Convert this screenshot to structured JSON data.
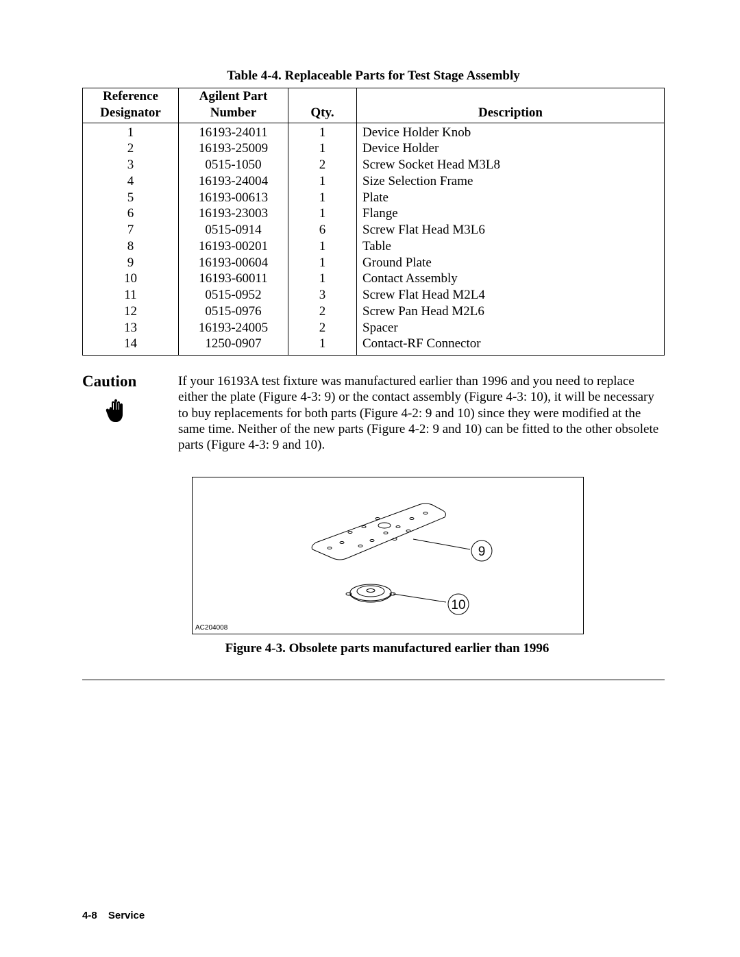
{
  "table": {
    "title": "Table 4-4. Replaceable Parts for Test Stage Assembly",
    "headers": {
      "ref1": "Reference",
      "ref2": "Designator",
      "part1": "Agilent Part",
      "part2": "Number",
      "qty": "Qty.",
      "desc": "Description"
    },
    "rows": [
      {
        "ref": "1",
        "part": "16193-24011",
        "qty": "1",
        "desc": "Device Holder Knob"
      },
      {
        "ref": "2",
        "part": "16193-25009",
        "qty": "1",
        "desc": "Device Holder"
      },
      {
        "ref": "3",
        "part": "0515-1050",
        "qty": "2",
        "desc": "Screw Socket Head M3L8"
      },
      {
        "ref": "4",
        "part": "16193-24004",
        "qty": "1",
        "desc": "Size Selection Frame"
      },
      {
        "ref": "5",
        "part": "16193-00613",
        "qty": "1",
        "desc": "Plate"
      },
      {
        "ref": "6",
        "part": "16193-23003",
        "qty": "1",
        "desc": "Flange"
      },
      {
        "ref": "7",
        "part": "0515-0914",
        "qty": "6",
        "desc": "Screw Flat Head M3L6"
      },
      {
        "ref": "8",
        "part": "16193-00201",
        "qty": "1",
        "desc": "Table"
      },
      {
        "ref": "9",
        "part": "16193-00604",
        "qty": "1",
        "desc": "Ground Plate"
      },
      {
        "ref": "10",
        "part": "16193-60011",
        "qty": "1",
        "desc": "Contact Assembly"
      },
      {
        "ref": "11",
        "part": "0515-0952",
        "qty": "3",
        "desc": "Screw Flat Head M2L4"
      },
      {
        "ref": "12",
        "part": "0515-0976",
        "qty": "2",
        "desc": "Screw Pan Head M2L6"
      },
      {
        "ref": "13",
        "part": "16193-24005",
        "qty": "2",
        "desc": "Spacer"
      },
      {
        "ref": "14",
        "part": "1250-0907",
        "qty": "1",
        "desc": "Contact-RF Connector"
      }
    ]
  },
  "caution": {
    "label": "Caution",
    "text": "If your 16193A test fixture was manufactured earlier than 1996 and you need to replace either the plate (Figure 4-3: 9) or the contact assembly (Figure 4-3: 10), it will be necessary to buy replacements for both parts (Figure 4-2: 9 and 10) since they were modified at the same time. Neither of the new parts (Figure 4-2: 9 and 10) can be fitted to the other obsolete parts (Figure 4-3: 9 and 10)."
  },
  "figure": {
    "callout9": "9",
    "callout10": "10",
    "code": "AC204008",
    "caption": "Figure 4-3. Obsolete parts manufactured earlier than 1996"
  },
  "footer": {
    "page": "4-8",
    "section": "Service"
  }
}
